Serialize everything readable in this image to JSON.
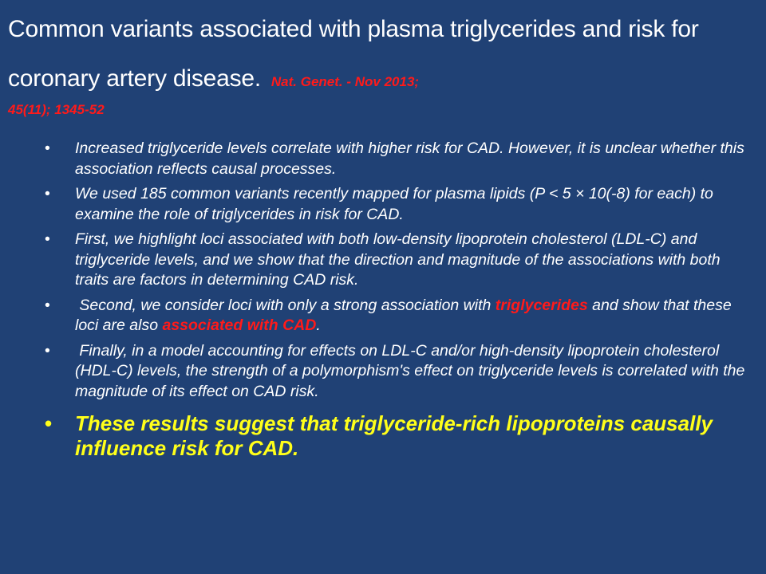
{
  "title": {
    "text": "Common variants associated with plasma triglycerides and risk for coronary artery disease.",
    "citation_line1": "Nat. Genet. - Nov 2013;",
    "citation_line2": "45(11); 1345-52"
  },
  "bullet_symbol": "•",
  "bullets": [
    {
      "text": "Increased triglyceride levels correlate with higher risk for CAD. However, it is unclear whether this association reflects causal processes."
    },
    {
      "text": "We used 185 common variants recently mapped for plasma lipids (P < 5 × 10(-8) for each) to examine the role of triglycerides in risk for CAD."
    },
    {
      "text": "First, we highlight loci associated with both low-density lipoprotein cholesterol (LDL-C) and triglyceride levels, and we show that the direction and magnitude of the associations with both traits are factors in determining CAD risk."
    },
    {
      "part1": " Second, we consider loci with only a strong association with ",
      "highlight1": "triglycerides",
      "part2": " and show that these loci are also ",
      "highlight2": "associated with CAD",
      "part3": "."
    },
    {
      "text": " Finally, in a model accounting for effects on LDL-C and/or high-density lipoprotein cholesterol (HDL-C) levels, the strength of a polymorphism's effect on triglyceride levels is correlated with the magnitude of its effect on CAD risk."
    },
    {
      "text": "These results suggest that triglyceride-rich lipoproteins causally influence risk for CAD."
    }
  ],
  "colors": {
    "background": "#204175",
    "text": "#ffffff",
    "highlight": "#ff1a1a",
    "conclusion": "#ffff1a"
  }
}
